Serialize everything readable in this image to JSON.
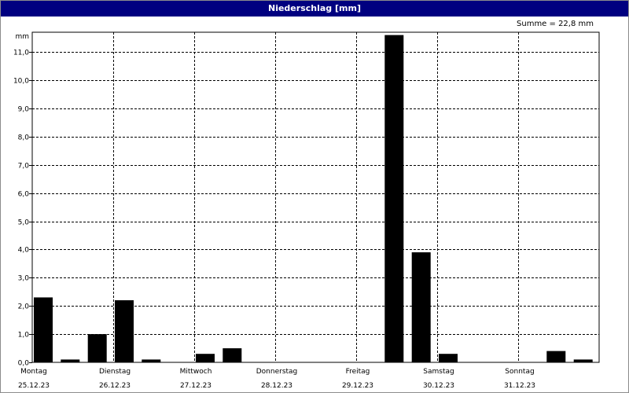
{
  "title": "Niederschlag [mm]",
  "summary": "Summe = 22,8 mm",
  "colors": {
    "titlebar": "#000080",
    "bars": "#000000",
    "grid": "#000000"
  },
  "chart_data": {
    "type": "bar",
    "title": "Niederschlag [mm]",
    "ylabel": "mm",
    "ylim": [
      0,
      11.7
    ],
    "yticks": [
      "0,0",
      "1,0",
      "2,0",
      "3,0",
      "4,0",
      "5,0",
      "6,0",
      "7,0",
      "8,0",
      "9,0",
      "10,0",
      "11,0"
    ],
    "days": [
      {
        "name": "Montag",
        "date": "25.12.23"
      },
      {
        "name": "Dienstag",
        "date": "26.12.23"
      },
      {
        "name": "Mittwoch",
        "date": "27.12.23"
      },
      {
        "name": "Donnerstag",
        "date": "28.12.23"
      },
      {
        "name": "Freitag",
        "date": "29.12.23"
      },
      {
        "name": "Samstag",
        "date": "30.12.23"
      },
      {
        "name": "Sonntag",
        "date": "31.12.23"
      }
    ],
    "bars_per_day": 3,
    "values": [
      2.3,
      0.1,
      1.0,
      2.2,
      0.1,
      0.0,
      0.3,
      0.5,
      0.0,
      0.0,
      0.0,
      0.0,
      0.0,
      11.6,
      3.9,
      0.3,
      0.0,
      0.0,
      0.0,
      0.4,
      0.1
    ],
    "grid": true
  }
}
